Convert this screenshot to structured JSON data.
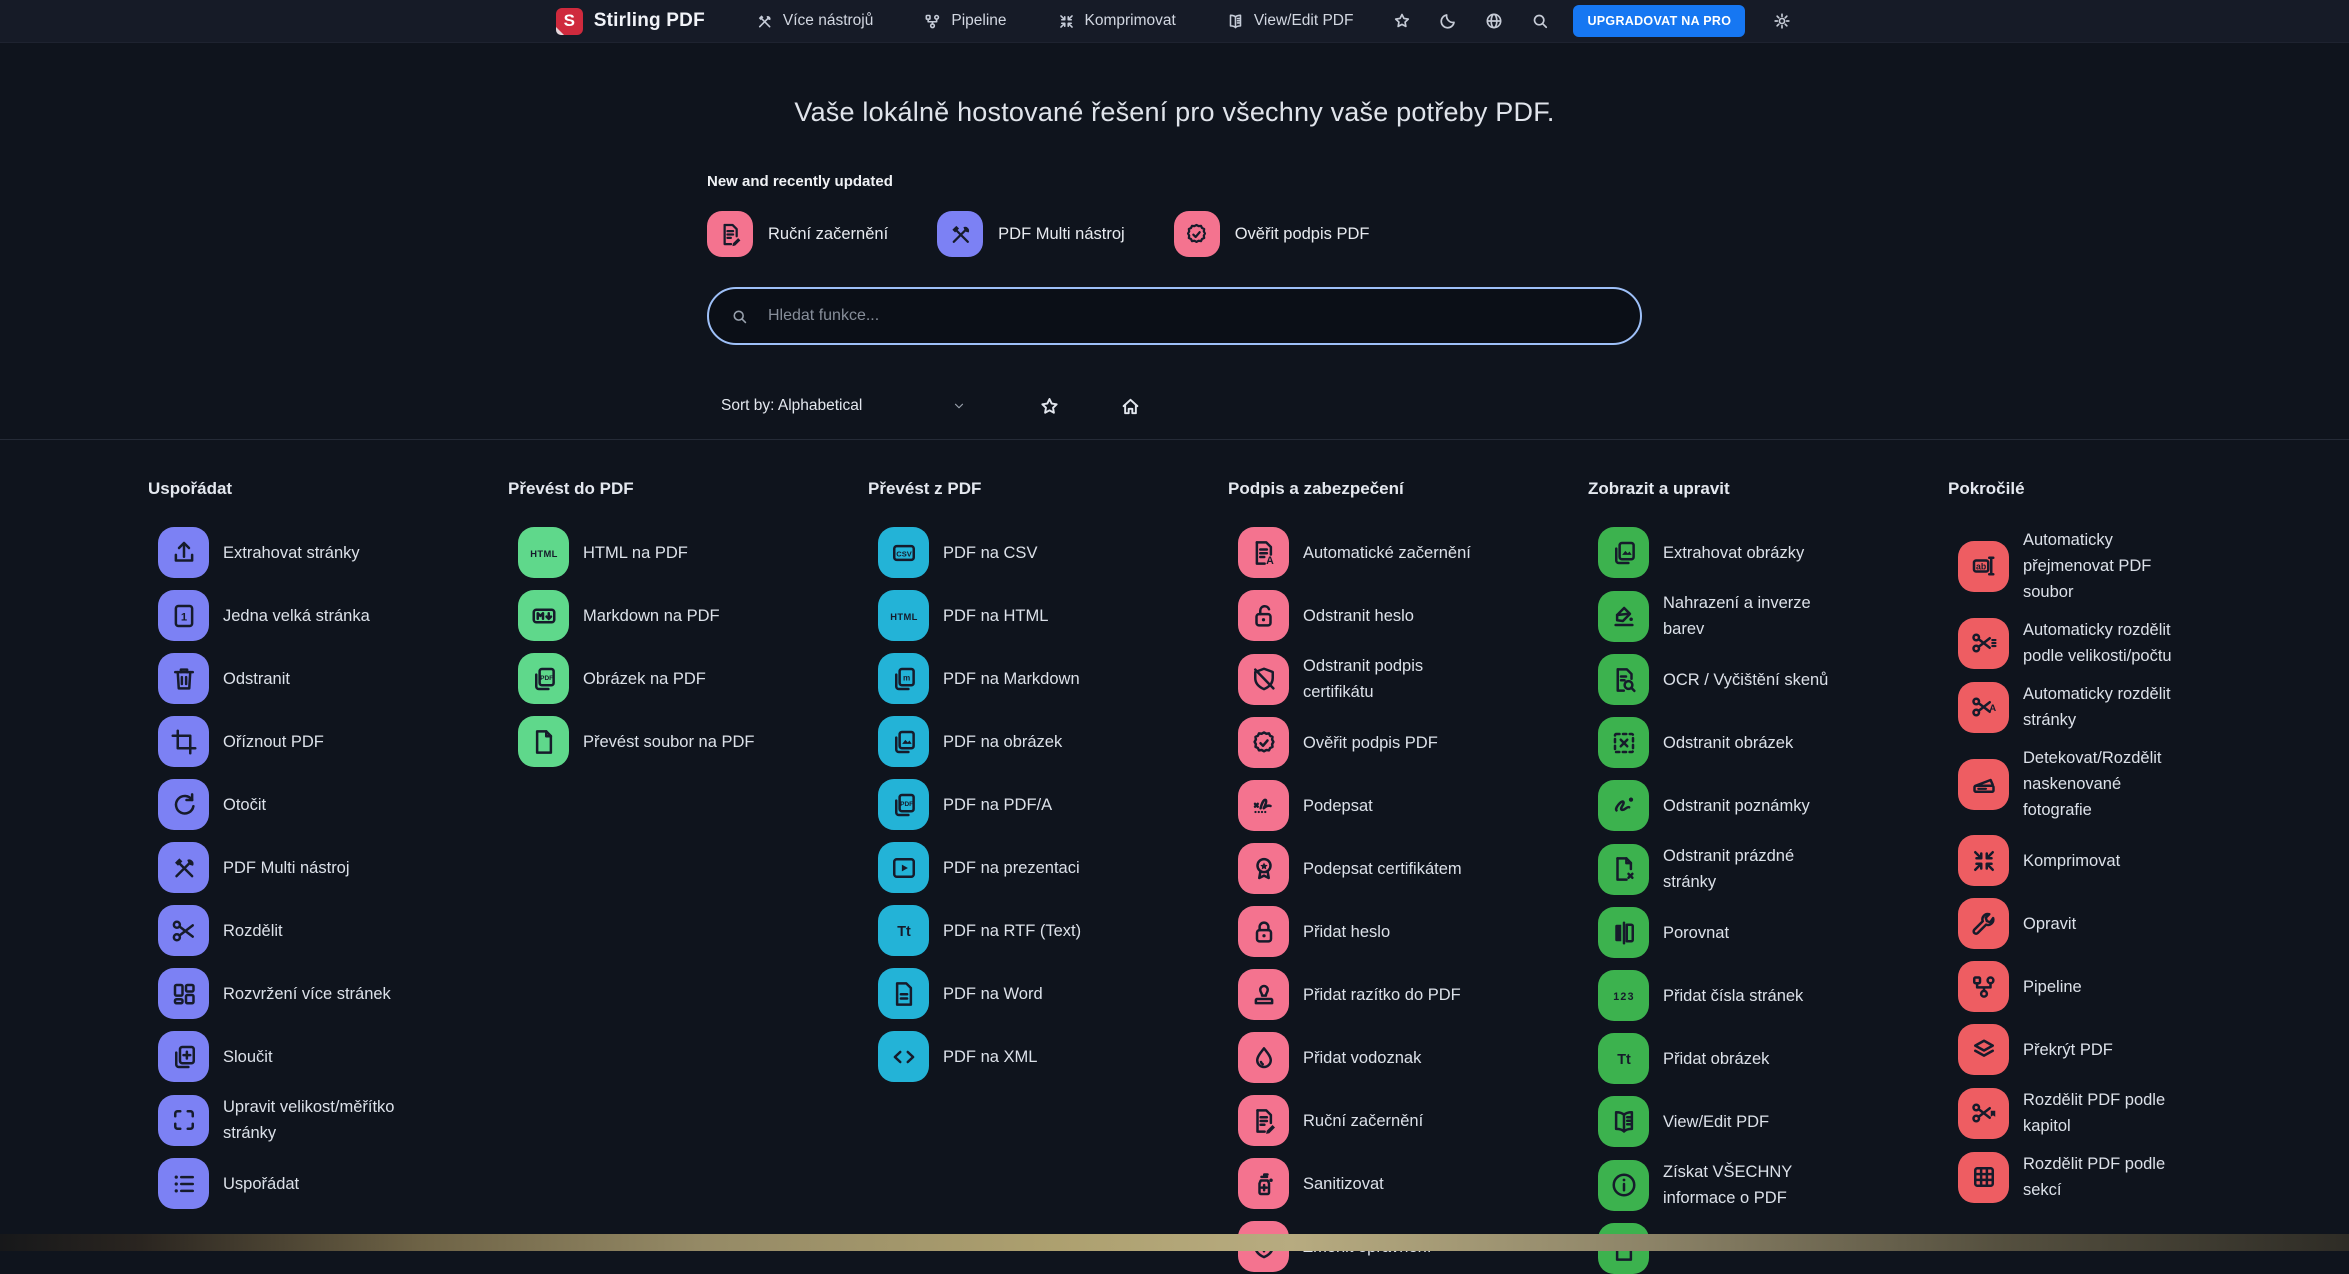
{
  "navbar": {
    "brand": {
      "logo_letter": "S",
      "title": "Stirling PDF"
    },
    "links": [
      {
        "label": "Více nástrojů",
        "icon": "tools"
      },
      {
        "label": "Pipeline",
        "icon": "pipeline"
      },
      {
        "label": "Komprimovat",
        "icon": "compress"
      },
      {
        "label": "View/Edit PDF",
        "icon": "book"
      }
    ],
    "action_icons": [
      "star",
      "moon",
      "globe",
      "search"
    ],
    "upgrade_label": "UPGRADOVAT NA PRO",
    "settings_icon": "gear",
    "upgrade_color": "#1677f2",
    "logo_color": "#cf2a3d"
  },
  "hero": {
    "title": "Vaše lokálně hostované řešení pro všechny vaše potřeby PDF.",
    "featured_heading": "New and recently updated",
    "featured": [
      {
        "label": "Ruční začernění",
        "icon": "doc-pencil",
        "color": "#f4738f"
      },
      {
        "label": "PDF Multi nástroj",
        "icon": "multi-tool",
        "color": "#7c81f4"
      },
      {
        "label": "Ověřit podpis PDF",
        "icon": "badge-check",
        "color": "#f4738f"
      }
    ],
    "search_placeholder": "Hledat funkce...",
    "sort_label": "Sort by: Alphabetical"
  },
  "sections": [
    {
      "title": "Uspořádat",
      "color": "#7c81f4",
      "items": [
        {
          "label": "Extrahovat stránky",
          "icon": "upload"
        },
        {
          "label": "Jedna velká stránka",
          "icon": "page-one"
        },
        {
          "label": "Odstranit",
          "icon": "trash"
        },
        {
          "label": "Oříznout PDF",
          "icon": "crop"
        },
        {
          "label": "Otočit",
          "icon": "rotate"
        },
        {
          "label": "PDF Multi nástroj",
          "icon": "multi-tool"
        },
        {
          "label": "Rozdělit",
          "icon": "scissors"
        },
        {
          "label": "Rozvržení více stránek",
          "icon": "grid-layout"
        },
        {
          "label": "Sloučit",
          "icon": "merge"
        },
        {
          "label": "Upravit velikost/měřítko stránky",
          "icon": "corners"
        },
        {
          "label": "Uspořádat",
          "icon": "list"
        }
      ]
    },
    {
      "title": "Převést do PDF",
      "color": "#5fd88b",
      "items": [
        {
          "label": "HTML na PDF",
          "icon": "html-text"
        },
        {
          "label": "Markdown na PDF",
          "icon": "markdown-box"
        },
        {
          "label": "Obrázek na PDF",
          "icon": "pages-pdf"
        },
        {
          "label": "Převést soubor na PDF",
          "icon": "file"
        }
      ]
    },
    {
      "title": "Převést z PDF",
      "color": "#23b3d7",
      "items": [
        {
          "label": "PDF na CSV",
          "icon": "csv-box"
        },
        {
          "label": "PDF na HTML",
          "icon": "html-text"
        },
        {
          "label": "PDF na Markdown",
          "icon": "pages-m"
        },
        {
          "label": "PDF na obrázek",
          "icon": "pages-image"
        },
        {
          "label": "PDF na PDF/A",
          "icon": "pages-pdf"
        },
        {
          "label": "PDF na prezentaci",
          "icon": "presentation"
        },
        {
          "label": "PDF na RTF (Text)",
          "icon": "text-tt"
        },
        {
          "label": "PDF na Word",
          "icon": "doc-lines"
        },
        {
          "label": "PDF na XML",
          "icon": "code"
        }
      ]
    },
    {
      "title": "Podpis a zabezpečení",
      "color": "#f4738f",
      "items": [
        {
          "label": "Automatické začernění",
          "icon": "doc-a"
        },
        {
          "label": "Odstranit heslo",
          "icon": "unlock"
        },
        {
          "label": "Odstranit podpis certifikátu",
          "icon": "shield-slash"
        },
        {
          "label": "Ověřit podpis PDF",
          "icon": "badge-check"
        },
        {
          "label": "Podepsat",
          "icon": "signature"
        },
        {
          "label": "Podepsat certifikátem",
          "icon": "medal"
        },
        {
          "label": "Přidat heslo",
          "icon": "lock"
        },
        {
          "label": "Přidat razítko do PDF",
          "icon": "stamp"
        },
        {
          "label": "Přidat vodoznak",
          "icon": "droplet"
        },
        {
          "label": "Ruční začernění",
          "icon": "doc-pencil"
        },
        {
          "label": "Sanitizovat",
          "icon": "sanitize"
        },
        {
          "label": "Změnit oprávnění",
          "icon": "shield-lock"
        }
      ]
    },
    {
      "title": "Zobrazit a upravit",
      "color": "#3cb24e",
      "items": [
        {
          "label": "Extrahovat obrázky",
          "icon": "pages-image"
        },
        {
          "label": "Nahrazení a inverze barev",
          "icon": "paint-pour"
        },
        {
          "label": "OCR / Vyčištění skenů",
          "icon": "doc-search"
        },
        {
          "label": "Odstranit obrázek",
          "icon": "dashed-x"
        },
        {
          "label": "Odstranit poznámky",
          "icon": "scribble"
        },
        {
          "label": "Odstranit prázdné stránky",
          "icon": "page-x"
        },
        {
          "label": "Porovnat",
          "icon": "compare"
        },
        {
          "label": "Přidat čísla stránek",
          "icon": "numbers"
        },
        {
          "label": "Přidat obrázek",
          "icon": "text-tt"
        },
        {
          "label": "View/Edit PDF",
          "icon": "book"
        },
        {
          "label": "Získat VŠECHNY informace o PDF",
          "icon": "info"
        },
        {
          "label": "",
          "icon": "file"
        }
      ]
    },
    {
      "title": "Pokročilé",
      "color": "#ee5d62",
      "items": [
        {
          "label": "Automaticky přejmenovat PDF soubor",
          "icon": "rename"
        },
        {
          "label": "Automaticky rozdělit podle velikosti/počtu",
          "icon": "scissors-lines"
        },
        {
          "label": "Automaticky rozdělit stránky",
          "icon": "scissors-a"
        },
        {
          "label": "Detekovat/Rozdělit naskenované fotografie",
          "icon": "scanner"
        },
        {
          "label": "Komprimovat",
          "icon": "compress"
        },
        {
          "label": "Opravit",
          "icon": "wrench"
        },
        {
          "label": "Pipeline",
          "icon": "pipeline"
        },
        {
          "label": "Překrýt PDF",
          "icon": "layers"
        },
        {
          "label": "Rozdělit PDF podle kapitol",
          "icon": "scissors-bookmark"
        },
        {
          "label": "Rozdělit PDF podle sekcí",
          "icon": "grid-3x3"
        }
      ]
    }
  ]
}
